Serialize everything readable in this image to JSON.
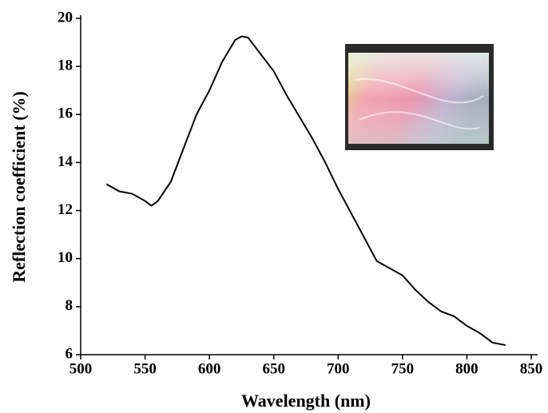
{
  "chart_data": {
    "type": "line",
    "xlabel": "Wavelength (nm)",
    "ylabel": "Reflection coefficient (%)",
    "x": [
      520,
      530,
      540,
      550,
      555,
      560,
      570,
      580,
      590,
      600,
      610,
      620,
      625,
      630,
      640,
      650,
      660,
      670,
      680,
      690,
      700,
      710,
      720,
      730,
      740,
      750,
      760,
      770,
      780,
      790,
      800,
      810,
      820,
      830
    ],
    "values": [
      13.1,
      12.8,
      12.7,
      12.4,
      12.2,
      12.4,
      13.2,
      14.6,
      16.0,
      17.0,
      18.2,
      19.1,
      19.25,
      19.2,
      18.5,
      17.8,
      16.8,
      15.9,
      15.0,
      14.0,
      12.9,
      11.9,
      10.9,
      9.9,
      9.6,
      9.3,
      8.7,
      8.2,
      7.8,
      7.6,
      7.2,
      6.9,
      6.5,
      6.4
    ],
    "color": "#000000",
    "xlim": [
      500,
      850
    ],
    "xticks": [
      500,
      550,
      600,
      650,
      700,
      750,
      800,
      850
    ],
    "ylim": [
      6,
      20
    ],
    "yticks": [
      6,
      8,
      10,
      12,
      14,
      16,
      18,
      20
    ]
  }
}
